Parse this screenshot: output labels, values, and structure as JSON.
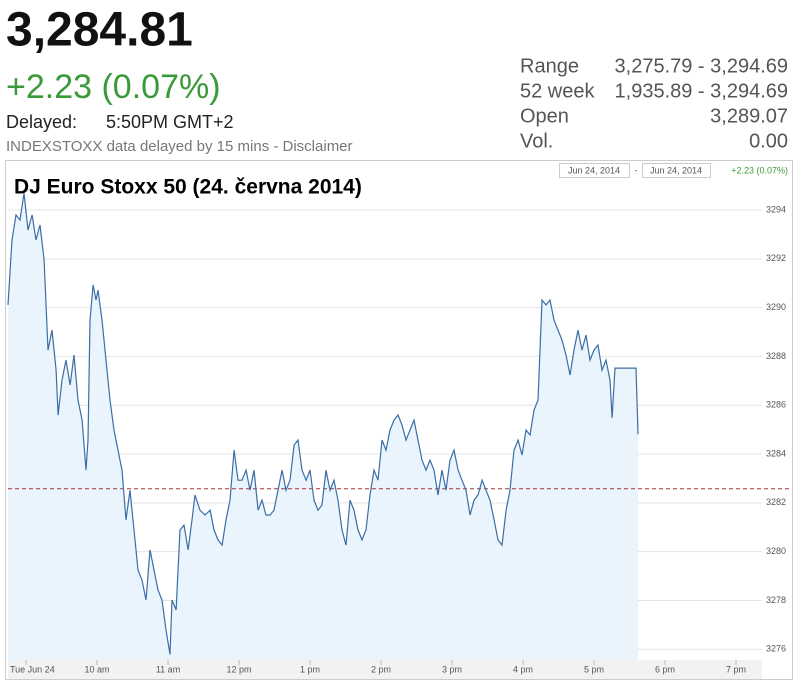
{
  "header": {
    "price": "3,284.81",
    "change": "+2.23 (0.07%)",
    "delayed_label": "Delayed:",
    "delayed_time": "5:50PM GMT+2",
    "source": "INDEXSTOXX data delayed by 15 mins - Disclaimer",
    "stats": [
      {
        "label": "Range",
        "value": "3,275.79 - 3,294.69"
      },
      {
        "label": "52 week",
        "value": "1,935.89 - 3,294.69"
      },
      {
        "label": "Open",
        "value": "3,289.07"
      },
      {
        "label": "Vol.",
        "value": "0.00"
      }
    ]
  },
  "chart_data": {
    "type": "line",
    "title": "DJ Euro Stoxx 50 (24. června 2014)",
    "range_start": "Jun 24, 2014",
    "range_separator": "-",
    "range_end": "Jun 24, 2014",
    "range_change": "+2.23 (0.07%)",
    "color": "#3b6ea5",
    "fill": "#eaf4fc",
    "reference_line": 3282.58,
    "reference_color": "#a33",
    "grid": true,
    "xlim": [
      8.746,
      19.366
    ],
    "ylim": [
      3275.56,
      3295.23
    ],
    "xticks": [
      {
        "value": 9,
        "label": "Tue Jun 24"
      },
      {
        "value": 10,
        "label": "10 am"
      },
      {
        "value": 11,
        "label": "11 am"
      },
      {
        "value": 12,
        "label": "12 pm"
      },
      {
        "value": 13,
        "label": "1 pm"
      },
      {
        "value": 14,
        "label": "2 pm"
      },
      {
        "value": 15,
        "label": "3 pm"
      },
      {
        "value": 16,
        "label": "4 pm"
      },
      {
        "value": 17,
        "label": "5 pm"
      },
      {
        "value": 18,
        "label": "6 pm"
      },
      {
        "value": 19,
        "label": "7 pm"
      }
    ],
    "yticks": [
      3276,
      3278,
      3280,
      3282,
      3284,
      3286,
      3288,
      3290,
      3292,
      3294
    ],
    "x": [
      8.746,
      8.803,
      8.859,
      8.915,
      8.972,
      9.028,
      9.085,
      9.141,
      9.197,
      9.254,
      9.31,
      9.366,
      9.423,
      9.451,
      9.507,
      9.563,
      9.62,
      9.676,
      9.732,
      9.789,
      9.845,
      9.873,
      9.901,
      9.944,
      9.986,
      10.014,
      10.07,
      10.127,
      10.183,
      10.239,
      10.296,
      10.352,
      10.408,
      10.465,
      10.521,
      10.577,
      10.634,
      10.69,
      10.746,
      10.803,
      10.859,
      10.915,
      10.972,
      11.028,
      11.056,
      11.113,
      11.169,
      11.225,
      11.282,
      11.338,
      11.38,
      11.451,
      11.521,
      11.592,
      11.648,
      11.704,
      11.761,
      11.817,
      11.873,
      11.93,
      11.986,
      12.042,
      12.099,
      12.155,
      12.211,
      12.268,
      12.324,
      12.38,
      12.437,
      12.493,
      12.549,
      12.606,
      12.662,
      12.718,
      12.775,
      12.831,
      12.887,
      12.944,
      13.0,
      13.056,
      13.113,
      13.169,
      13.225,
      13.282,
      13.338,
      13.394,
      13.451,
      13.507,
      13.563,
      13.62,
      13.676,
      13.732,
      13.789,
      13.845,
      13.901,
      13.958,
      14.014,
      14.07,
      14.127,
      14.183,
      14.239,
      14.296,
      14.352,
      14.408,
      14.465,
      14.521,
      14.577,
      14.634,
      14.69,
      14.746,
      14.803,
      14.859,
      14.915,
      14.972,
      15.028,
      15.085,
      15.141,
      15.197,
      15.254,
      15.31,
      15.366,
      15.423,
      15.479,
      15.535,
      15.592,
      15.648,
      15.704,
      15.761,
      15.817,
      15.873,
      15.93,
      15.986,
      16.042,
      16.099,
      16.155,
      16.211,
      16.268,
      16.324,
      16.38,
      16.437,
      16.493,
      16.549,
      16.606,
      16.662,
      16.718,
      16.775,
      16.831,
      16.887,
      16.944,
      17.0,
      17.056,
      17.113,
      17.169,
      17.225,
      17.254,
      17.296,
      17.592,
      17.62
    ],
    "values": [
      3290.11,
      3292.77,
      3293.8,
      3293.59,
      3294.69,
      3293.18,
      3293.8,
      3292.77,
      3293.39,
      3291.95,
      3288.26,
      3289.08,
      3287.44,
      3285.6,
      3287.03,
      3287.85,
      3286.83,
      3288.06,
      3286.21,
      3285.39,
      3283.34,
      3284.57,
      3289.49,
      3290.93,
      3290.31,
      3290.72,
      3289.49,
      3287.85,
      3286.21,
      3284.98,
      3284.16,
      3283.34,
      3281.3,
      3282.52,
      3280.89,
      3279.25,
      3278.84,
      3278.02,
      3280.07,
      3279.25,
      3278.43,
      3278.02,
      3276.79,
      3275.79,
      3278.02,
      3277.61,
      3280.89,
      3281.09,
      3280.07,
      3281.3,
      3282.32,
      3281.7,
      3281.5,
      3281.7,
      3280.89,
      3280.48,
      3280.27,
      3281.3,
      3282.11,
      3284.16,
      3282.93,
      3282.93,
      3283.34,
      3282.52,
      3283.34,
      3281.7,
      3282.11,
      3281.5,
      3281.5,
      3281.7,
      3282.52,
      3283.34,
      3282.52,
      3282.93,
      3284.37,
      3284.57,
      3283.34,
      3282.93,
      3283.34,
      3282.11,
      3281.7,
      3281.91,
      3283.34,
      3282.52,
      3282.93,
      3282.11,
      3280.89,
      3280.27,
      3282.11,
      3281.7,
      3280.89,
      3280.48,
      3280.89,
      3282.32,
      3283.34,
      3282.93,
      3284.57,
      3284.16,
      3284.98,
      3285.39,
      3285.6,
      3285.19,
      3284.57,
      3284.98,
      3285.39,
      3284.57,
      3283.75,
      3283.34,
      3283.75,
      3283.34,
      3282.32,
      3283.34,
      3282.52,
      3283.75,
      3284.16,
      3283.34,
      3282.93,
      3282.52,
      3281.5,
      3282.11,
      3282.32,
      3282.93,
      3282.52,
      3282.11,
      3281.3,
      3280.48,
      3280.27,
      3281.7,
      3282.52,
      3284.16,
      3284.57,
      3283.96,
      3284.98,
      3284.78,
      3285.8,
      3286.21,
      3290.31,
      3290.11,
      3290.31,
      3289.49,
      3289.08,
      3288.67,
      3288.06,
      3287.24,
      3288.26,
      3289.08,
      3288.26,
      3288.88,
      3287.85,
      3288.26,
      3288.47,
      3287.44,
      3287.85,
      3287.03,
      3285.48,
      3287.52,
      3287.52,
      3284.81
    ]
  }
}
